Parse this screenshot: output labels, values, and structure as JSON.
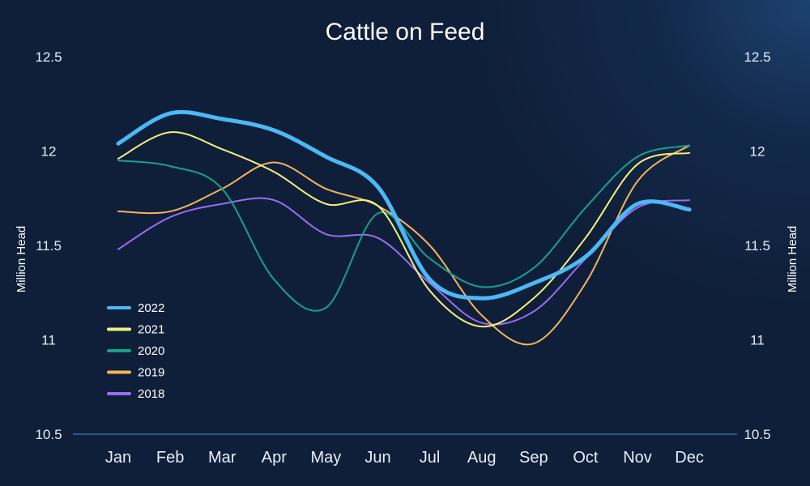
{
  "chart_data": {
    "type": "line",
    "title": "Cattle on Feed",
    "ylabel": "Million Head",
    "ylabel_right": "Million Head",
    "xlabel": "",
    "ylim": [
      10.5,
      12.5
    ],
    "yticks": [
      "10.5",
      "11",
      "11.5",
      "12",
      "12.5"
    ],
    "categories": [
      "Jan",
      "Feb",
      "Mar",
      "Apr",
      "May",
      "Jun",
      "Jul",
      "Aug",
      "Sep",
      "Oct",
      "Nov",
      "Dec"
    ],
    "grid": false,
    "legend_position": "bottom-left",
    "series": [
      {
        "name": "2022",
        "color": "#4cb8f5",
        "values": [
          12.04,
          12.2,
          12.17,
          12.11,
          11.97,
          11.81,
          11.32,
          11.22,
          11.3,
          11.44,
          11.72,
          11.69
        ]
      },
      {
        "name": "2021",
        "color": "#f4f07a",
        "values": [
          11.96,
          12.1,
          12.01,
          11.89,
          11.72,
          11.71,
          11.26,
          11.07,
          11.22,
          11.54,
          11.93,
          11.99
        ]
      },
      {
        "name": "2020",
        "color": "#17a08c",
        "values": [
          11.95,
          11.92,
          11.8,
          11.32,
          11.17,
          11.67,
          11.43,
          11.28,
          11.38,
          11.7,
          11.97,
          12.03
        ]
      },
      {
        "name": "2019",
        "color": "#f5b35a",
        "values": [
          11.68,
          11.68,
          11.8,
          11.94,
          11.8,
          11.71,
          11.5,
          11.13,
          10.98,
          11.3,
          11.84,
          12.03
        ]
      },
      {
        "name": "2018",
        "color": "#9a6cf0",
        "values": [
          11.48,
          11.65,
          11.72,
          11.74,
          11.56,
          11.54,
          11.3,
          11.09,
          11.15,
          11.43,
          11.7,
          11.74
        ]
      }
    ]
  }
}
